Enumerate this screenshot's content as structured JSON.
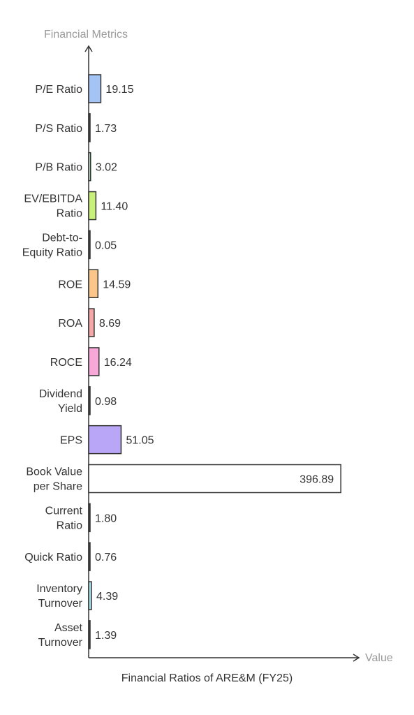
{
  "chart_data": {
    "type": "bar",
    "orientation": "horizontal",
    "title": "Financial Ratios of ARE&M (FY25)",
    "xlabel": "Value",
    "ylabel": "Financial Metrics",
    "categories": [
      "P/E Ratio",
      "P/S Ratio",
      "P/B Ratio",
      "EV/EBITDA\nRatio",
      "Debt-to-\nEquity Ratio",
      "ROE",
      "ROA",
      "ROCE",
      "Dividend\nYield",
      "EPS",
      "Book Value\nper Share",
      "Current\nRatio",
      "Quick Ratio",
      "Inventory\nTurnover",
      "Asset\nTurnover"
    ],
    "values": [
      19.15,
      1.73,
      3.02,
      11.4,
      0.05,
      14.59,
      8.69,
      16.24,
      0.98,
      51.05,
      396.89,
      1.8,
      0.76,
      4.39,
      1.39
    ],
    "value_labels": [
      "19.15",
      "1.73",
      "3.02",
      "11.40",
      "0.05",
      "14.59",
      "8.69",
      "16.24",
      "0.98",
      "51.05",
      "396.89",
      "1.80",
      "0.76",
      "4.39",
      "1.39"
    ],
    "colors": [
      "#a3c4f5",
      "#4a4a4a",
      "#b7e4c7",
      "#c9f07a",
      "#4a4a4a",
      "#fbc68a",
      "#f6a7a7",
      "#f7a8d8",
      "#4a4a4a",
      "#b9a6f7",
      "#ffffff",
      "#4a4a4a",
      "#4a4a4a",
      "#a8e3f0",
      "#4a4a4a"
    ],
    "xlim": [
      0,
      400
    ],
    "grid": false,
    "legend": "none"
  }
}
